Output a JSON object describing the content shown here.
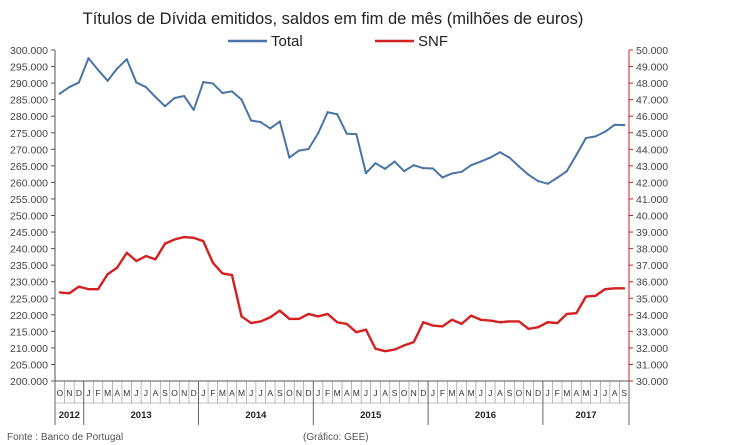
{
  "chart_data": {
    "type": "line",
    "title": "Títulos de Dívida emitidos, saldos em fim de mês  (milhões de euros)",
    "left_axis": {
      "min": 200000,
      "max": 300000,
      "step": 5000,
      "tick_labels": [
        "200.000",
        "205.000",
        "210.000",
        "215.000",
        "220.000",
        "225.000",
        "230.000",
        "235.000",
        "240.000",
        "245.000",
        "250.000",
        "255.000",
        "260.000",
        "265.000",
        "270.000",
        "275.000",
        "280.000",
        "285.000",
        "290.000",
        "295.000",
        "300.000"
      ]
    },
    "right_axis": {
      "min": 30000,
      "max": 50000,
      "step": 1000,
      "tick_labels": [
        "30.000",
        "31.000",
        "32.000",
        "33.000",
        "34.000",
        "35.000",
        "36.000",
        "37.000",
        "38.000",
        "39.000",
        "40.000",
        "41.000",
        "42.000",
        "43.000",
        "44.000",
        "45.000",
        "46.000",
        "47.000",
        "48.000",
        "49.000",
        "50.000"
      ]
    },
    "months": [
      "O",
      "N",
      "D",
      "J",
      "F",
      "M",
      "A",
      "M",
      "J",
      "J",
      "A",
      "S",
      "O",
      "N",
      "D",
      "J",
      "F",
      "M",
      "A",
      "M",
      "J",
      "J",
      "A",
      "S",
      "O",
      "N",
      "D",
      "J",
      "F",
      "M",
      "A",
      "M",
      "J",
      "J",
      "A",
      "S",
      "O",
      "N",
      "D",
      "J",
      "F",
      "M",
      "A",
      "M",
      "J",
      "J",
      "A",
      "S",
      "O",
      "N",
      "D",
      "J",
      "F",
      "M",
      "A",
      "M",
      "J",
      "J",
      "A",
      "S"
    ],
    "years": [
      {
        "label": "2012",
        "start": 0,
        "end": 3
      },
      {
        "label": "2013",
        "start": 3,
        "end": 15
      },
      {
        "label": "2014",
        "start": 15,
        "end": 27
      },
      {
        "label": "2015",
        "start": 27,
        "end": 39
      },
      {
        "label": "2016",
        "start": 39,
        "end": 51
      },
      {
        "label": "2017",
        "start": 51,
        "end": 60
      }
    ],
    "series": [
      {
        "name": "Total",
        "axis": "left",
        "color": "#4a74a8",
        "values": [
          286800,
          288800,
          290200,
          297500,
          294000,
          290700,
          294400,
          297200,
          290200,
          288800,
          285800,
          283000,
          285500,
          286100,
          281900,
          290300,
          289900,
          287000,
          287500,
          285000,
          278700,
          278200,
          276300,
          278400,
          267500,
          269600,
          270100,
          274800,
          281200,
          280600,
          274700,
          274600,
          262800,
          265800,
          264100,
          266300,
          263400,
          265200,
          264300,
          264200,
          261500,
          262700,
          263200,
          265200,
          266300,
          267500,
          269100,
          267500,
          264800,
          262300,
          260400,
          259600,
          261400,
          263400,
          268300,
          273400,
          273900,
          275300,
          277400,
          277300
        ]
      },
      {
        "name": "SNF",
        "axis": "right",
        "color": "#d42020",
        "values": [
          35350,
          35300,
          35700,
          35550,
          35550,
          36450,
          36850,
          37750,
          37250,
          37550,
          37350,
          38300,
          38550,
          38700,
          38650,
          38450,
          37150,
          36500,
          36400,
          33900,
          33500,
          33600,
          33850,
          34250,
          33750,
          33750,
          34050,
          33900,
          34050,
          33550,
          33450,
          32950,
          33100,
          31950,
          31800,
          31900,
          32150,
          32350,
          33550,
          33350,
          33300,
          33700,
          33450,
          33950,
          33700,
          33650,
          33550,
          33600,
          33600,
          33150,
          33250,
          33550,
          33500,
          34050,
          34100,
          35100,
          35150,
          35550,
          35600,
          35600
        ]
      }
    ]
  },
  "footer": {
    "source": "Fonte : Banco de Portugal",
    "credit": "(Gráfico: GEE)"
  }
}
